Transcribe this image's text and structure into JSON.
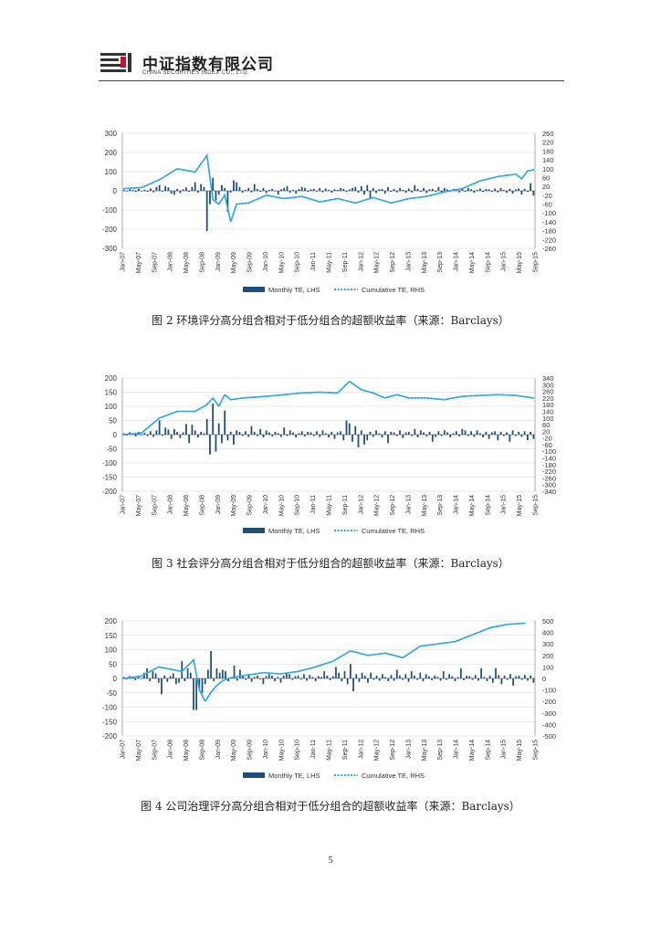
{
  "header": {
    "company_cn": "中证指数有限公司",
    "company_en": "CHINA SECURITIES INDEX CO., LTD."
  },
  "colors": {
    "bars": "#1f4e79",
    "line": "#2fa8dd",
    "grid": "#d4d4d4"
  },
  "icons": {
    "logo": "csi-logo-icon"
  },
  "page_number": "5",
  "chart_data": [
    {
      "type": "bar",
      "caption": "图 2 环境评分高分组合相对于低分组合的超额收益率（来源：Barclays）",
      "x_ticks": [
        "Jan-07",
        "May-07",
        "Sep-07",
        "Jan-08",
        "May-08",
        "Sep-08",
        "Jan-09",
        "May-09",
        "Sep-09",
        "Jan-10",
        "May-10",
        "Sep-10",
        "Jan-11",
        "May-11",
        "Sep-11",
        "Jan-12",
        "May-12",
        "Sep-12",
        "Jan-13",
        "May-13",
        "Sep-13",
        "Jan-14",
        "May-14",
        "Sep-14",
        "Jan-15",
        "May-15",
        "Sep-15"
      ],
      "ylim_left": [
        -300,
        300
      ],
      "yticks_left": [
        300,
        200,
        100,
        0,
        -100,
        -200,
        -300
      ],
      "ylim_right": [
        -260,
        260
      ],
      "yticks_right": [
        260,
        220,
        180,
        140,
        100,
        60,
        20,
        -20,
        -60,
        -100,
        -140,
        -180,
        -220,
        -260
      ],
      "legend": [
        "Monthly TE, LHS",
        "Cumulative TE, RHS"
      ],
      "series": [
        {
          "name": "Monthly TE, LHS",
          "axis": "left",
          "values": [
            5,
            -3,
            8,
            4,
            -6,
            10,
            -2,
            6,
            -5,
            12,
            -8,
            20,
            30,
            -4,
            25,
            18,
            -15,
            -20,
            10,
            -12,
            8,
            18,
            -6,
            20,
            45,
            -10,
            35,
            20,
            -210,
            -70,
            68,
            -50,
            -20,
            30,
            15,
            -110,
            -10,
            55,
            45,
            20,
            -10,
            5,
            15,
            -8,
            35,
            10,
            -5,
            15,
            -12,
            5,
            10,
            -3,
            -20,
            8,
            15,
            25,
            -10,
            5,
            -15,
            10,
            20,
            15,
            -5,
            8,
            10,
            -4,
            15,
            -8,
            12,
            5,
            -10,
            8,
            5,
            15,
            10,
            -6,
            8,
            15,
            20,
            -10,
            25,
            -20,
            30,
            -45,
            15,
            -12,
            8,
            10,
            -15,
            20,
            -5,
            10,
            -8,
            15,
            5,
            -10,
            12,
            -8,
            30,
            10,
            -5,
            15,
            -12,
            8,
            10,
            -5,
            20,
            -10,
            15,
            8,
            -6,
            10,
            5,
            -8,
            12,
            -5,
            15,
            8,
            -10,
            5,
            12,
            -6,
            10,
            8,
            -5,
            12,
            -8,
            15,
            5,
            -10,
            10,
            -15,
            8,
            12,
            -20,
            10,
            -5,
            40,
            -25
          ]
        },
        {
          "name": "Cumulative TE, RHS",
          "axis": "right",
          "x_idx": [
            0,
            6,
            12,
            18,
            24,
            28,
            30,
            32,
            34,
            36,
            38,
            42,
            48,
            54,
            60,
            66,
            72,
            78,
            84,
            90,
            96,
            102,
            108,
            114,
            120,
            126,
            132,
            134,
            136,
            138
          ],
          "values": [
            10,
            15,
            50,
            100,
            85,
            160,
            -40,
            -60,
            -20,
            -140,
            -60,
            -55,
            -20,
            -35,
            -25,
            -50,
            -35,
            -55,
            -30,
            -55,
            -35,
            -25,
            -5,
            10,
            45,
            65,
            75,
            55,
            90,
            95
          ]
        }
      ]
    },
    {
      "type": "bar",
      "caption": "图 3 社会评分高分组合相对于低分组合的超额收益率（来源：Barclays）",
      "x_ticks": [
        "Jan-07",
        "May-07",
        "Sep-07",
        "Jan-08",
        "May-08",
        "Sep-08",
        "Jan-09",
        "May-09",
        "Sep-09",
        "Jan-10",
        "May-10",
        "Sep-10",
        "Jan-11",
        "May-11",
        "Sep-11",
        "Jan-12",
        "May-12",
        "Sep-12",
        "Jan-13",
        "May-13",
        "Sep-13",
        "Jan-14",
        "May-14",
        "Sep-14",
        "Jan-15",
        "May-15",
        "Sep-15"
      ],
      "ylim_left": [
        -200,
        200
      ],
      "yticks_left": [
        200,
        150,
        100,
        50,
        0,
        -50,
        -100,
        -150,
        -200
      ],
      "ylim_right": [
        -340,
        340
      ],
      "yticks_right": [
        340,
        300,
        260,
        220,
        180,
        140,
        100,
        60,
        20,
        -20,
        -60,
        -100,
        -140,
        -180,
        -220,
        -260,
        -300,
        -340
      ],
      "legend": [
        "Monthly TE, LHS",
        "Cumulative TE, RHS"
      ],
      "series": [
        {
          "name": "Monthly TE, LHS",
          "axis": "left",
          "values": [
            5,
            -3,
            8,
            4,
            -6,
            10,
            -2,
            6,
            -5,
            12,
            -8,
            15,
            50,
            -4,
            25,
            18,
            -15,
            20,
            10,
            -12,
            8,
            38,
            -30,
            35,
            15,
            -10,
            10,
            5,
            55,
            -70,
            110,
            -60,
            40,
            -30,
            85,
            -20,
            10,
            -35,
            15,
            10,
            -5,
            12,
            -8,
            30,
            10,
            -5,
            20,
            -10,
            15,
            8,
            -6,
            10,
            5,
            -8,
            25,
            -5,
            15,
            8,
            -10,
            5,
            12,
            -6,
            10,
            8,
            -5,
            12,
            -8,
            15,
            5,
            -10,
            10,
            -15,
            8,
            12,
            -20,
            50,
            40,
            -25,
            30,
            -45,
            15,
            -35,
            -20,
            10,
            -8,
            15,
            5,
            -10,
            12,
            -30,
            10,
            8,
            -5,
            15,
            -12,
            8,
            10,
            -5,
            20,
            -10,
            15,
            8,
            -6,
            10,
            -25,
            -8,
            12,
            -5,
            15,
            8,
            -10,
            5,
            12,
            -6,
            20,
            15,
            -5,
            12,
            -8,
            15,
            5,
            -10,
            10,
            -15,
            8,
            12,
            -20,
            10,
            -5,
            8,
            -25,
            15,
            -5,
            10,
            -8,
            12,
            -20,
            10,
            -15
          ]
        },
        {
          "name": "Cumulative TE, RHS",
          "axis": "right",
          "x_idx": [
            0,
            6,
            12,
            18,
            24,
            28,
            30,
            32,
            34,
            36,
            40,
            48,
            54,
            60,
            66,
            72,
            76,
            80,
            84,
            88,
            92,
            96,
            102,
            108,
            114,
            120,
            126,
            132,
            138
          ],
          "values": [
            0,
            10,
            100,
            140,
            140,
            180,
            220,
            170,
            240,
            210,
            220,
            230,
            240,
            250,
            255,
            250,
            320,
            270,
            250,
            220,
            240,
            220,
            220,
            210,
            230,
            235,
            240,
            235,
            220
          ]
        }
      ]
    },
    {
      "type": "bar",
      "caption": "图 4 公司治理评分高分组合相对于低分组合的超额收益率（来源：Barclays）",
      "x_ticks": [
        "Jan-07",
        "May-07",
        "Sep-07",
        "Jan-08",
        "May-08",
        "Sep-08",
        "Jan-09",
        "May-09",
        "Sep-09",
        "Jan-10",
        "May-10",
        "Sep-10",
        "Jan-11",
        "May-11",
        "Sep-11",
        "Jan-12",
        "May-12",
        "Sep-12",
        "Jan-13",
        "May-13",
        "Sep-13",
        "Jan-14",
        "May-14",
        "Sep-14",
        "Jan-15",
        "May-15",
        "Sep-15"
      ],
      "ylim_left": [
        -200,
        200
      ],
      "yticks_left": [
        200,
        150,
        100,
        50,
        0,
        -50,
        -100,
        -150,
        -200
      ],
      "ylim_right": [
        -500,
        500
      ],
      "yticks_right": [
        500,
        400,
        300,
        200,
        100,
        0,
        -100,
        -200,
        -300,
        -400,
        -500
      ],
      "legend": [
        "Monthly TE, LHS",
        "Cumulative TE, RHS"
      ],
      "series": [
        {
          "name": "Monthly TE, LHS",
          "axis": "left",
          "values": [
            5,
            -3,
            8,
            4,
            -6,
            10,
            -2,
            20,
            35,
            -10,
            25,
            18,
            -15,
            -55,
            10,
            -12,
            8,
            18,
            -20,
            -15,
            60,
            -10,
            35,
            20,
            -110,
            -110,
            -40,
            -50,
            -20,
            30,
            95,
            -10,
            35,
            20,
            30,
            25,
            -10,
            5,
            45,
            -8,
            30,
            10,
            -5,
            15,
            -12,
            5,
            10,
            -3,
            -20,
            8,
            15,
            10,
            -10,
            5,
            -15,
            10,
            20,
            15,
            -5,
            8,
            10,
            -4,
            15,
            -8,
            12,
            5,
            -10,
            8,
            5,
            25,
            10,
            -6,
            8,
            40,
            20,
            -10,
            25,
            -20,
            50,
            -45,
            15,
            -12,
            20,
            10,
            -15,
            20,
            -5,
            10,
            -8,
            15,
            5,
            -10,
            12,
            -8,
            30,
            10,
            -5,
            15,
            -12,
            25,
            10,
            -5,
            20,
            -10,
            15,
            8,
            -6,
            10,
            5,
            -8,
            25,
            -5,
            15,
            8,
            -10,
            5,
            35,
            -6,
            10,
            8,
            -5,
            12,
            -8,
            35,
            5,
            -10,
            10,
            -15,
            35,
            12,
            -20,
            10,
            -5,
            15,
            -25,
            8,
            10,
            -5,
            12,
            -8,
            10,
            -15
          ]
        },
        {
          "name": "Cumulative TE, RHS",
          "axis": "right",
          "x_idx": [
            0,
            6,
            12,
            16,
            20,
            24,
            26,
            28,
            30,
            32,
            34,
            36,
            40,
            48,
            54,
            60,
            66,
            72,
            78,
            84,
            90,
            96,
            102,
            108,
            114,
            120,
            126,
            132,
            138
          ],
          "values": [
            0,
            20,
            100,
            80,
            60,
            160,
            -100,
            -200,
            -120,
            -60,
            -20,
            0,
            20,
            50,
            40,
            60,
            100,
            150,
            240,
            200,
            220,
            180,
            280,
            300,
            320,
            380,
            440,
            470,
            480
          ]
        }
      ]
    }
  ]
}
